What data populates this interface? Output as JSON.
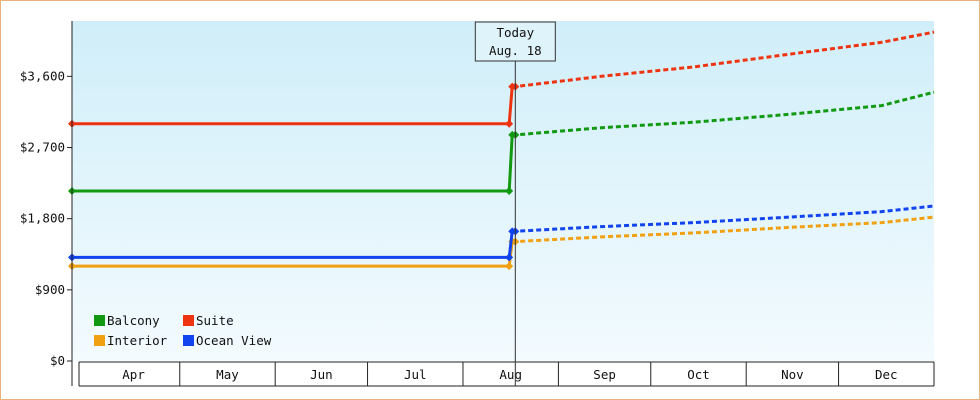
{
  "chart_data": {
    "type": "line",
    "title": "",
    "xlabel": "",
    "ylabel": "",
    "ylim": [
      0,
      4300
    ],
    "yticks": [
      0,
      900,
      1800,
      2700,
      3600
    ],
    "ytick_labels": [
      "$0",
      "$900",
      "$1,800",
      "$2,700",
      "$3,600"
    ],
    "months": [
      "Apr",
      "May",
      "Jun",
      "Jul",
      "Aug",
      "Sep",
      "Oct",
      "Nov",
      "Dec"
    ],
    "x_domain": [
      "2025-03-27",
      "2026-01-01"
    ],
    "today_date": "2025-08-18",
    "today_label": [
      "Today",
      "Aug. 18"
    ],
    "grid": false,
    "legend_position": "bottom-left",
    "background_gradient": [
      "#d0eef9",
      "#f3fbfe"
    ],
    "series": [
      {
        "name": "Balcony",
        "color": "#119911",
        "history": [
          [
            "2025-03-27",
            2150
          ],
          [
            "2025-08-16",
            2150
          ]
        ],
        "history_markers": [
          [
            "2025-03-27",
            2150
          ],
          [
            "2025-08-16",
            2150
          ]
        ],
        "forecast": [
          [
            "2025-08-17",
            2860
          ],
          [
            "2025-08-18",
            2860
          ],
          [
            "2025-09-15",
            2950
          ],
          [
            "2025-10-15",
            3020
          ],
          [
            "2025-11-15",
            3120
          ],
          [
            "2025-12-15",
            3230
          ],
          [
            "2026-01-01",
            3400
          ]
        ],
        "forecast_markers": [
          [
            "2025-08-17",
            2860
          ],
          [
            "2025-08-18",
            2860
          ]
        ]
      },
      {
        "name": "Suite",
        "color": "#ee3311",
        "history": [
          [
            "2025-03-27",
            3000
          ],
          [
            "2025-08-16",
            3000
          ]
        ],
        "history_markers": [
          [
            "2025-03-27",
            3000
          ],
          [
            "2025-08-16",
            3000
          ]
        ],
        "forecast": [
          [
            "2025-08-17",
            3470
          ],
          [
            "2025-08-18",
            3470
          ],
          [
            "2025-09-15",
            3600
          ],
          [
            "2025-10-15",
            3720
          ],
          [
            "2025-11-15",
            3880
          ],
          [
            "2025-12-15",
            4030
          ],
          [
            "2026-01-01",
            4160
          ]
        ],
        "forecast_markers": [
          [
            "2025-08-17",
            3470
          ],
          [
            "2025-08-18",
            3470
          ]
        ]
      },
      {
        "name": "Interior",
        "color": "#f0a010",
        "history": [
          [
            "2025-03-27",
            1200
          ],
          [
            "2025-08-16",
            1200
          ]
        ],
        "history_markers": [
          [
            "2025-03-27",
            1200
          ],
          [
            "2025-08-16",
            1200
          ]
        ],
        "forecast": [
          [
            "2025-08-17",
            1510
          ],
          [
            "2025-08-18",
            1510
          ],
          [
            "2025-09-15",
            1570
          ],
          [
            "2025-10-15",
            1620
          ],
          [
            "2025-11-15",
            1690
          ],
          [
            "2025-12-15",
            1750
          ],
          [
            "2026-01-01",
            1820
          ]
        ],
        "forecast_markers": [
          [
            "2025-08-17",
            1510
          ],
          [
            "2025-08-18",
            1510
          ]
        ]
      },
      {
        "name": "Ocean View",
        "color": "#1144ee",
        "history": [
          [
            "2025-03-27",
            1310
          ],
          [
            "2025-08-16",
            1310
          ]
        ],
        "history_markers": [
          [
            "2025-03-27",
            1310
          ],
          [
            "2025-08-16",
            1310
          ]
        ],
        "forecast": [
          [
            "2025-08-17",
            1640
          ],
          [
            "2025-08-18",
            1640
          ],
          [
            "2025-09-15",
            1700
          ],
          [
            "2025-10-15",
            1750
          ],
          [
            "2025-11-15",
            1820
          ],
          [
            "2025-12-15",
            1890
          ],
          [
            "2026-01-01",
            1960
          ]
        ],
        "forecast_markers": [
          [
            "2025-08-17",
            1640
          ],
          [
            "2025-08-18",
            1640
          ]
        ]
      }
    ],
    "legend": [
      {
        "name": "Balcony",
        "color": "#119911"
      },
      {
        "name": "Suite",
        "color": "#ee3311"
      },
      {
        "name": "Interior",
        "color": "#f0a010"
      },
      {
        "name": "Ocean View",
        "color": "#1144ee"
      }
    ]
  }
}
